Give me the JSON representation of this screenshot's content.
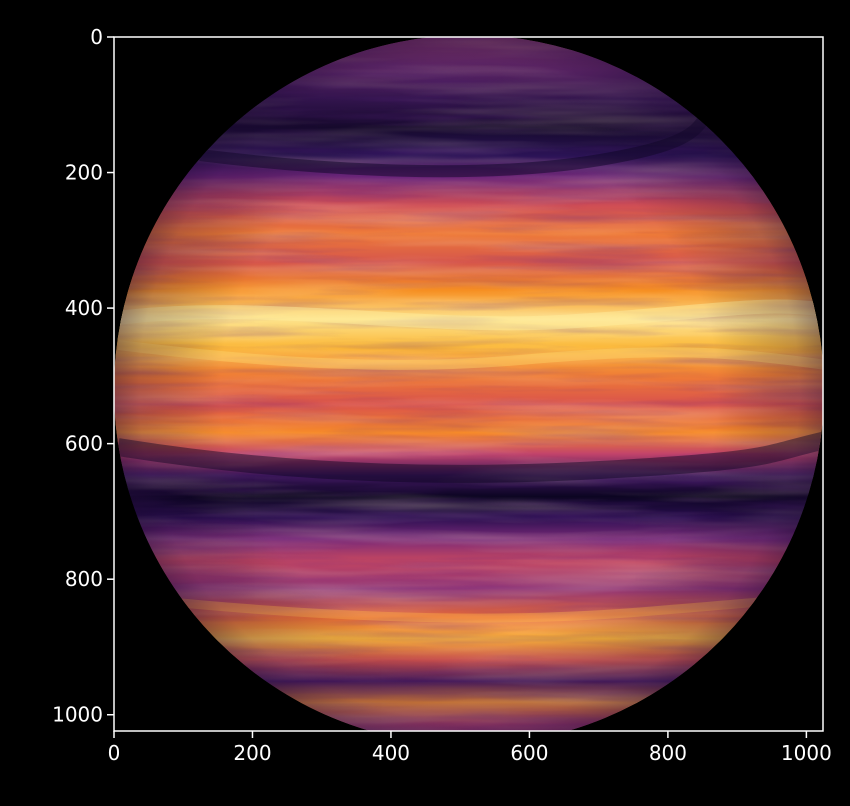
{
  "figure": {
    "background": "#000000",
    "axis_color": "#ffffff",
    "image_extent": [
      0,
      1024
    ],
    "x_ticks": [
      "0",
      "200",
      "400",
      "600",
      "800",
      "1000"
    ],
    "y_ticks": [
      "0",
      "200",
      "400",
      "600",
      "800",
      "1000"
    ],
    "colormap": "inferno",
    "subject": "banded gas giant planet disk"
  }
}
